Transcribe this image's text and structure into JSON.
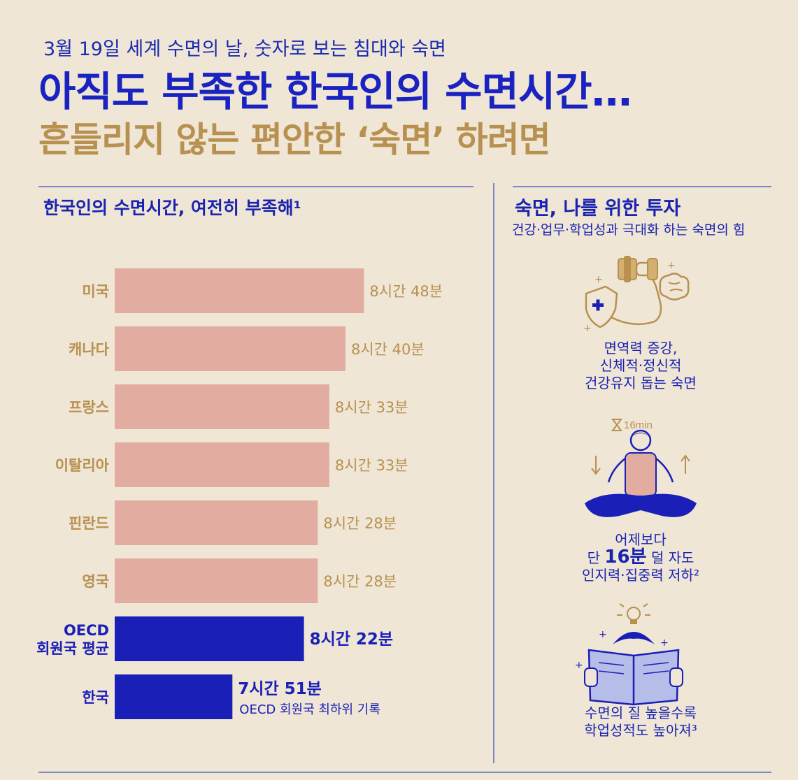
{
  "header": {
    "kicker": "3월 19일 세계 수면의 날, 숫자로 보는 침대와 숙면",
    "title": "아직도 부족한 한국인의 수면시간…",
    "subtitle": "흔들리지 않는 편안한 ‘숙면’ 하려면"
  },
  "left_section": {
    "title": "한국인의 수면시간, 여전히 부족해¹"
  },
  "chart_data": {
    "type": "bar",
    "orientation": "horizontal",
    "categories": [
      "미국",
      "캐나다",
      "프랑스",
      "이탈리아",
      "핀란드",
      "영국",
      "OECD\n회원국 평균",
      "한국"
    ],
    "values": [
      528,
      520,
      513,
      513,
      508,
      508,
      502,
      471
    ],
    "value_labels": [
      "8시간 48분",
      "8시간 40분",
      "8시간 33분",
      "8시간 33분",
      "8시간 28분",
      "8시간 28분",
      "8시간 22분",
      "7시간 51분"
    ],
    "annotation": "OECD 회원국 최하위 기록",
    "colors": {
      "bar": "#e2ada0",
      "highlight_bar": "#1a1fb8",
      "label": "#b8904f",
      "highlight_label": "#1a1fb8"
    },
    "highlight": [
      "OECD\n회원국 평균",
      "한국"
    ]
  },
  "right_section": {
    "title": "숙면, 나를 위한 투자",
    "subtitle": "건강·업무·학업성과 극대화 하는 숙면의 힘",
    "item1": {
      "icon": "dumbbell-arm-brain-shield-icon",
      "lines": [
        "면역력 증강,",
        "신체적·정신적",
        "건강유지 돕는 숙면"
      ]
    },
    "item2": {
      "icon": "meditation-icon",
      "timer": "16min",
      "line1": "어제보다",
      "line2_pre": "단 ",
      "line2_big": "16분",
      "line2_post": " 덜 자도",
      "line3": "인지력·집중력 저하²"
    },
    "item3": {
      "icon": "reading-book-lightbulb-icon",
      "lines": [
        "수면의 질 높을수록",
        "학업성적도 높아져³"
      ]
    }
  }
}
